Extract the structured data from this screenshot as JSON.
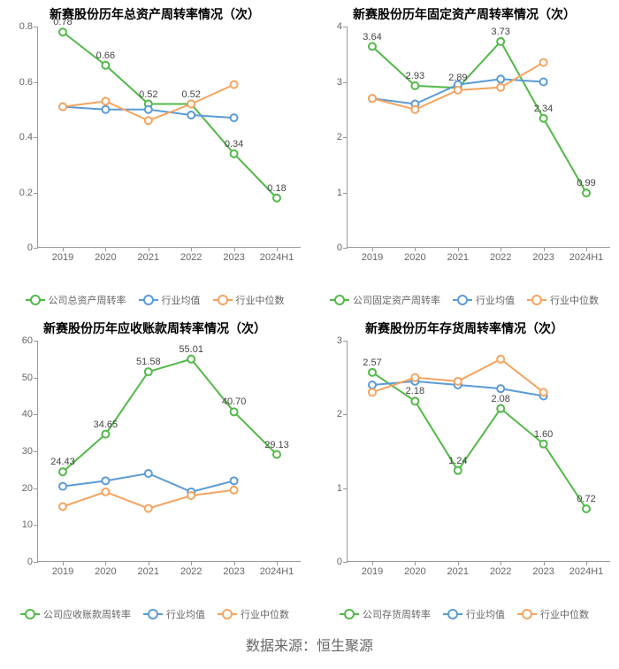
{
  "source_text": "数据来源：恒生聚源",
  "global": {
    "categories": [
      "2019",
      "2020",
      "2021",
      "2022",
      "2023",
      "2024H1"
    ],
    "colors": {
      "company": "#52b948",
      "industry_avg": "#5b9bd5",
      "industry_median": "#f4a460",
      "axis": "#999999",
      "text": "#666666",
      "label": "#444444",
      "background": "#ffffff"
    },
    "title_fontsize": 14,
    "axis_fontsize": 11,
    "legend_fontsize": 11,
    "label_fontsize": 11,
    "line_width": 2,
    "marker_radius": 4,
    "marker_style": "hollow-circle"
  },
  "charts": [
    {
      "id": "total_asset",
      "title": "新赛股份历年总资产周转率情况（次）",
      "ylim": [
        0,
        0.8
      ],
      "yticks": [
        0,
        0.2,
        0.4,
        0.6,
        0.8
      ],
      "legend_company": "公司总资产周转率",
      "legend_avg": "行业均值",
      "legend_median": "行业中位数",
      "series": {
        "company": {
          "values": [
            0.78,
            0.66,
            0.52,
            0.52,
            0.34,
            0.18
          ],
          "show_labels": true
        },
        "avg": {
          "values": [
            0.51,
            0.5,
            0.5,
            0.48,
            0.47,
            null
          ],
          "show_labels": false
        },
        "median": {
          "values": [
            0.51,
            0.53,
            0.46,
            0.52,
            0.59,
            null
          ],
          "show_labels": false
        }
      }
    },
    {
      "id": "fixed_asset",
      "title": "新赛股份历年固定资产周转率情况（次）",
      "ylim": [
        0,
        4
      ],
      "yticks": [
        0,
        1,
        2,
        3,
        4
      ],
      "legend_company": "公司固定资产周转率",
      "legend_avg": "行业均值",
      "legend_median": "行业中位数",
      "series": {
        "company": {
          "values": [
            3.64,
            2.93,
            2.89,
            3.73,
            2.34,
            0.99
          ],
          "show_labels": true
        },
        "avg": {
          "values": [
            2.7,
            2.6,
            2.95,
            3.05,
            3.0,
            null
          ],
          "show_labels": false
        },
        "median": {
          "values": [
            2.7,
            2.5,
            2.85,
            2.9,
            3.35,
            null
          ],
          "show_labels": false
        }
      }
    },
    {
      "id": "receivables",
      "title": "新赛股份历年应收账款周转率情况（次）",
      "ylim": [
        0,
        60
      ],
      "yticks": [
        0,
        10,
        20,
        30,
        40,
        50,
        60
      ],
      "legend_company": "公司应收账款周转率",
      "legend_avg": "行业均值",
      "legend_median": "行业中位数",
      "series": {
        "company": {
          "values": [
            24.43,
            34.65,
            51.58,
            55.01,
            40.7,
            29.13
          ],
          "show_labels": true
        },
        "avg": {
          "values": [
            20.5,
            22.0,
            24.0,
            19.0,
            22.0,
            null
          ],
          "show_labels": false
        },
        "median": {
          "values": [
            15.0,
            19.0,
            14.5,
            18.0,
            19.5,
            null
          ],
          "show_labels": false
        }
      }
    },
    {
      "id": "inventory",
      "title": "新赛股份历年存货周转率情况（次）",
      "ylim": [
        0,
        3
      ],
      "yticks": [
        0,
        1,
        2,
        3
      ],
      "legend_company": "公司存货周转率",
      "legend_avg": "行业均值",
      "legend_median": "行业中位数",
      "series": {
        "company": {
          "values": [
            2.57,
            2.18,
            1.24,
            2.08,
            1.6,
            0.72
          ],
          "show_labels": true
        },
        "avg": {
          "values": [
            2.4,
            2.45,
            2.4,
            2.35,
            2.25,
            null
          ],
          "show_labels": false
        },
        "median": {
          "values": [
            2.3,
            2.5,
            2.45,
            2.75,
            2.3,
            null
          ],
          "show_labels": false
        }
      }
    }
  ]
}
